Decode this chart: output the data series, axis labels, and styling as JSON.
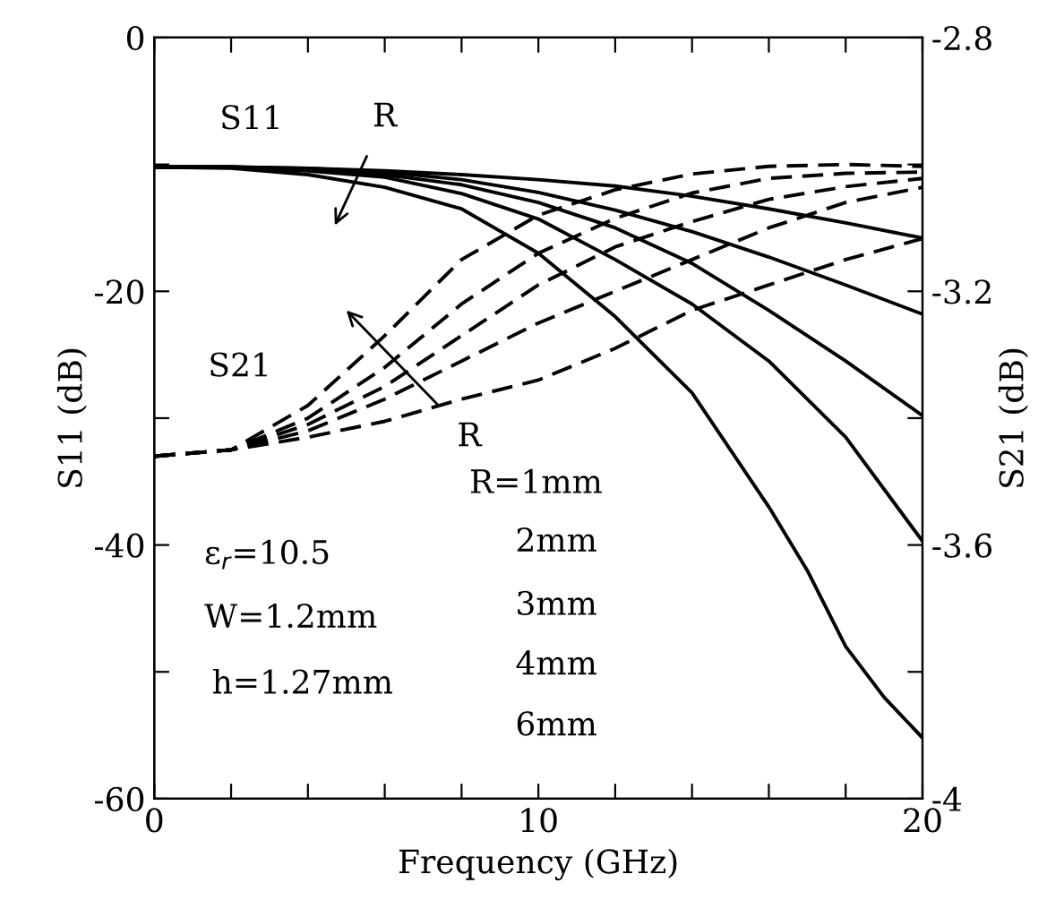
{
  "chart_data": {
    "type": "line",
    "xlabel": "Frequency (GHz)",
    "ylabel": "S11 (dB)",
    "y2label": "S21 (dB)",
    "x": [
      0,
      2,
      4,
      6,
      8,
      10,
      12,
      14,
      16,
      18,
      20
    ],
    "series": [
      {
        "color": "#000000",
        "line_style": "solid",
        "values": [
          -10.2,
          -10.2,
          -10.3,
          -10.5,
          -10.8,
          -11.2,
          -11.7,
          -12.5,
          -13.5,
          -14.6,
          -15.8
        ]
      },
      {
        "color": "#000000",
        "line_style": "solid",
        "values": [
          -10.2,
          -10.2,
          -10.3,
          -10.6,
          -11.2,
          -12.2,
          -13.6,
          -15.3,
          -17.3,
          -19.5,
          -21.8
        ]
      },
      {
        "color": "#000000",
        "line_style": "solid",
        "values": [
          -10.2,
          -10.2,
          -10.4,
          -10.8,
          -11.6,
          -13,
          -15,
          -17.8,
          -21.5,
          -25.5,
          -29.8
        ]
      },
      {
        "color": "#000000",
        "line_style": "solid",
        "values": [
          -10.2,
          -10.2,
          -10.5,
          -11,
          -12.3,
          -14.3,
          -17.5,
          -21,
          -25.5,
          -31.5,
          -39.7
        ]
      },
      {
        "color": "#000000",
        "line_style": "solid",
        "x": [
          0,
          2,
          4,
          6,
          8,
          10,
          12,
          14,
          16,
          17,
          18,
          19,
          20
        ],
        "values": [
          -10.2,
          -10.3,
          -10.8,
          -11.8,
          -13.5,
          -17,
          -22,
          -28,
          -37,
          -42,
          -48,
          -52,
          -55.2
        ]
      },
      {
        "color": "#000000",
        "line_style": "dashed",
        "axis": "y2",
        "values": [
          -3.46,
          -3.45,
          -3.38,
          -3.27,
          -3.15,
          -3.08,
          -3.04,
          -3.015,
          -3.003,
          -3.0,
          -3.003
        ]
      },
      {
        "color": "#000000",
        "line_style": "dashed",
        "axis": "y2",
        "values": [
          -3.46,
          -3.45,
          -3.4,
          -3.32,
          -3.22,
          -3.14,
          -3.085,
          -3.045,
          -3.022,
          -3.014,
          -3.012
        ]
      },
      {
        "color": "#000000",
        "line_style": "dashed",
        "axis": "y2",
        "values": [
          -3.46,
          -3.45,
          -3.41,
          -3.35,
          -3.27,
          -3.19,
          -3.13,
          -3.09,
          -3.055,
          -3.035,
          -3.022
        ]
      },
      {
        "color": "#000000",
        "line_style": "dashed",
        "axis": "y2",
        "values": [
          -3.46,
          -3.45,
          -3.42,
          -3.37,
          -3.31,
          -3.25,
          -3.2,
          -3.15,
          -3.1,
          -3.06,
          -3.036
        ]
      },
      {
        "color": "#000000",
        "line_style": "dashed",
        "axis": "y2",
        "values": [
          -3.46,
          -3.45,
          -3.43,
          -3.405,
          -3.37,
          -3.34,
          -3.29,
          -3.23,
          -3.19,
          -3.15,
          -3.117
        ]
      }
    ],
    "xlim": [
      0,
      20
    ],
    "xticks": [
      0,
      {
        "value": 2,
        "label": null
      },
      {
        "value": 4,
        "label": null
      },
      {
        "value": 6,
        "label": null
      },
      {
        "value": 8,
        "label": null
      },
      10,
      {
        "value": 12,
        "label": null
      },
      {
        "value": 14,
        "label": null
      },
      {
        "value": 16,
        "label": null
      },
      {
        "value": 18,
        "label": null
      },
      20
    ],
    "ylim": [
      -60,
      0
    ],
    "yticks": [
      -60,
      {
        "value": -50,
        "label": null
      },
      -40,
      {
        "value": -30,
        "label": null
      },
      -20,
      {
        "value": -10,
        "label": null
      },
      0
    ],
    "y2lim": [
      -4,
      -2.8
    ],
    "y2ticks": [
      {
        "value": -4,
        "label": "-4"
      },
      {
        "value": -3.8,
        "label": null
      },
      {
        "value": -3.6,
        "label": "-3.6"
      },
      {
        "value": -3.4,
        "label": null
      },
      {
        "value": -3.2,
        "label": "-3.2"
      },
      {
        "value": -3.0,
        "label": null
      },
      {
        "value": -2.8,
        "label": "-2.8"
      }
    ],
    "annotations": [
      "S11",
      "S21",
      "R",
      "R",
      "R=1mm",
      "2mm",
      "3mm",
      "4mm",
      "6mm",
      "ε$_{r}$=10.5",
      "W=1.2mm",
      "h=1.27mm"
    ],
    "grid": false,
    "legend": false,
    "marker": "none"
  }
}
